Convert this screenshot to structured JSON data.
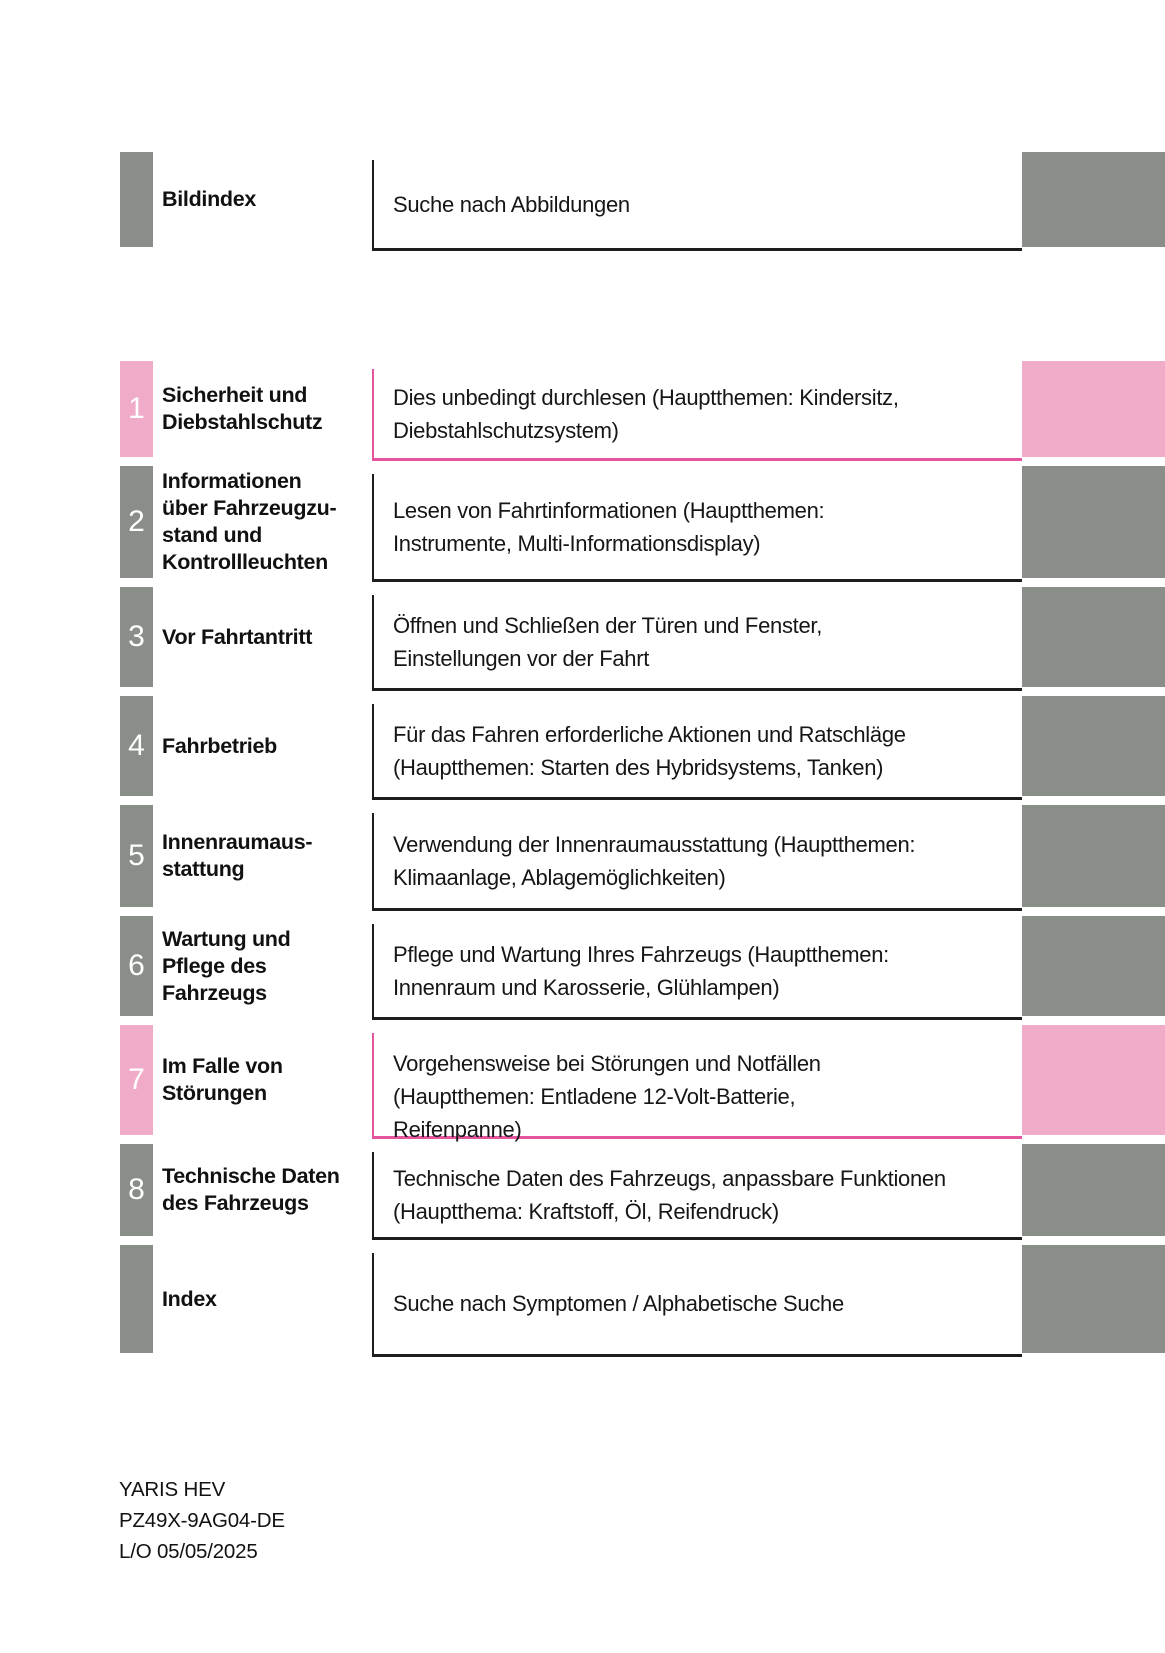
{
  "colors": {
    "tab_gray": "#8a8e89",
    "tab_pink": "#efabc8",
    "rule_pink": "#e4559e",
    "rule_dark": "#1d1d1b"
  },
  "toc": {
    "rows": [
      {
        "number": "",
        "accent": "gray",
        "title": "Bildindex",
        "description": "Suche nach Abbildungen"
      },
      {
        "number": "1",
        "accent": "pink",
        "title": "Sicherheit und\nDiebstahlschutz",
        "description": "Dies unbedingt durchlesen (Hauptthemen: Kindersitz,\nDiebstahlschutzsystem)"
      },
      {
        "number": "2",
        "accent": "gray",
        "title": "Informationen\nüber Fahrzeugzu-\nstand und\nKontrollleuchten",
        "description": "Lesen von Fahrtinformationen (Hauptthemen:\nInstrumente, Multi-Informationsdisplay)"
      },
      {
        "number": "3",
        "accent": "gray",
        "title": "Vor Fahrtantritt",
        "description": "Öffnen und Schließen der Türen und Fenster,\nEinstellungen vor der Fahrt"
      },
      {
        "number": "4",
        "accent": "gray",
        "title": "Fahrbetrieb",
        "description": "Für das Fahren erforderliche Aktionen und Ratschläge\n(Hauptthemen: Starten des Hybridsystems, Tanken)"
      },
      {
        "number": "5",
        "accent": "gray",
        "title": "Innenraumaus-\nstattung",
        "description": "Verwendung der Innenraumausstattung (Hauptthemen:\nKlimaanlage, Ablagemöglichkeiten)"
      },
      {
        "number": "6",
        "accent": "gray",
        "title": "Wartung und\nPflege des\nFahrzeugs",
        "description": "Pflege und Wartung Ihres Fahrzeugs (Hauptthemen:\nInnenraum und Karosserie, Glühlampen)"
      },
      {
        "number": "7",
        "accent": "pink",
        "title": "Im Falle von\nStörungen",
        "description": "Vorgehensweise bei Störungen und Notfällen\n(Hauptthemen: Entladene 12-Volt-Batterie,\nReifenpanne)"
      },
      {
        "number": "8",
        "accent": "gray",
        "title": "Technische Daten\ndes Fahrzeugs",
        "description": "Technische Daten des Fahrzeugs, anpassbare Funktionen\n(Hauptthema: Kraftstoff, Öl, Reifendruck)"
      },
      {
        "number": "",
        "accent": "gray",
        "title": "Index",
        "description": "Suche nach Symptomen / Alphabetische Suche"
      }
    ]
  },
  "footer": {
    "model": "YARIS HEV",
    "code": "PZ49X-9AG04-DE",
    "layout_date": "L/O 05/05/2025"
  }
}
